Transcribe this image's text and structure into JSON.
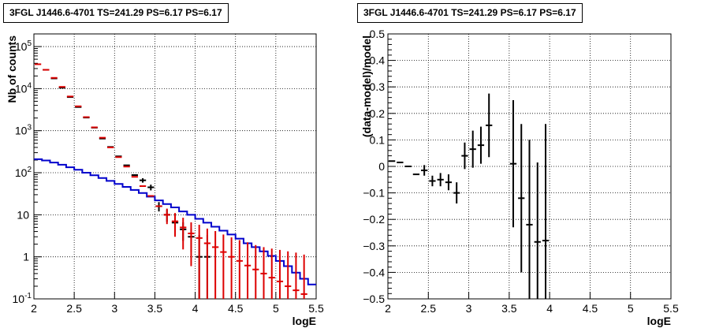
{
  "panels": [
    {
      "title": "3FGL J1446.6-4701 TS=241.29 PS=6.17 PS=6.17"
    },
    {
      "title": "3FGL J1446.6-4701 TS=241.29 PS=6.17 PS=6.17"
    }
  ],
  "chart_data": [
    {
      "type": "line",
      "title": "3FGL J1446.6-4701 TS=241.29 PS=6.17 PS=6.17",
      "xlabel": "logE",
      "ylabel": "Nb of counts",
      "xlim": [
        2,
        5.5
      ],
      "ylim": [
        0.1,
        200000
      ],
      "yscale": "log",
      "grid": true,
      "xticks": [
        "2",
        "2.5",
        "3",
        "3.5",
        "4",
        "4.5",
        "5",
        "5.5"
      ],
      "yticks": [
        "10^-1",
        "1",
        "10",
        "10^2",
        "10^3",
        "10^4",
        "10^5"
      ],
      "bin_edges": [
        2.0,
        2.1,
        2.2,
        2.3,
        2.4,
        2.5,
        2.6,
        2.7,
        2.8,
        2.9,
        3.0,
        3.1,
        3.2,
        3.3,
        3.4,
        3.5,
        3.6,
        3.7,
        3.8,
        3.9,
        4.0,
        4.1,
        4.2,
        4.3,
        4.4,
        4.5,
        4.6,
        4.7,
        4.8,
        4.9,
        5.0,
        5.1,
        5.2,
        5.3,
        5.4,
        5.5
      ],
      "series": [
        {
          "color": "#0000cc",
          "style": "histogram",
          "values": [
            210,
            195,
            175,
            155,
            135,
            118,
            100,
            87,
            75,
            64,
            54,
            46,
            39,
            33,
            27,
            22,
            18,
            15,
            12,
            10,
            8,
            6.5,
            5.2,
            4.2,
            3.4,
            2.7,
            2.1,
            1.7,
            1.35,
            1.05,
            0.8,
            0.6,
            0.42,
            0.3,
            0.22
          ]
        },
        {
          "color": "#dd0000",
          "style": "markers",
          "x": [
            2.05,
            2.15,
            2.25,
            2.35,
            2.45,
            2.55,
            2.65,
            2.75,
            2.85,
            2.95,
            3.05,
            3.15,
            3.25,
            3.35,
            3.45,
            3.55,
            3.65,
            3.75,
            3.85,
            3.95,
            4.05,
            4.15,
            4.25,
            4.35,
            4.45,
            4.55,
            4.65,
            4.75,
            4.85,
            4.95,
            5.05,
            5.15,
            5.25,
            5.35
          ],
          "y": [
            38000,
            28000,
            18000,
            11000,
            6500,
            3800,
            2100,
            1200,
            680,
            400,
            235,
            140,
            80,
            48,
            28,
            16,
            10,
            7.0,
            5.0,
            3.6,
            2.8,
            2.1,
            1.7,
            1.3,
            1.0,
            0.8,
            0.62,
            0.5,
            0.4,
            0.32,
            0.26,
            0.2,
            0.16,
            0.13
          ],
          "yerr_lo": [
            0,
            0,
            0,
            0,
            0,
            0,
            0,
            0,
            0,
            0,
            0,
            0,
            0,
            0,
            0,
            0,
            4,
            4,
            3.5,
            3,
            2.7,
            2.0,
            1.65,
            1.25,
            0.97,
            0.78,
            0.6,
            0.49,
            0.39,
            0.31,
            0.255,
            0.196,
            0.157,
            0.128
          ],
          "yerr_hi": [
            0,
            0,
            0,
            0,
            0,
            0,
            0,
            0,
            0,
            0,
            0,
            0,
            0,
            0,
            0,
            0,
            4,
            4,
            3.5,
            3,
            3,
            2.6,
            2.4,
            2.1,
            1.9,
            1.7,
            1.6,
            1.4,
            1.3,
            1.25,
            1.2,
            1.15,
            1.1,
            1.0
          ]
        },
        {
          "color": "#000000",
          "style": "markers",
          "x": [
            2.15,
            2.25,
            2.35,
            2.45,
            2.55,
            2.65,
            2.75,
            2.85,
            2.95,
            3.05,
            3.15,
            3.25,
            3.35,
            3.45,
            3.55,
            3.65,
            3.75,
            3.85,
            3.95,
            4.05,
            4.15
          ],
          "y": [
            28000,
            17500,
            10500,
            6300,
            3650,
            2050,
            1180,
            650,
            410,
            245,
            150,
            88,
            66,
            45,
            16,
            10,
            6.5,
            4.5,
            3.0,
            1.0,
            1.0
          ],
          "yerr_lo": [
            0,
            0,
            0,
            0,
            0,
            0,
            0,
            0,
            0,
            0,
            0,
            0,
            8,
            7,
            4,
            3.2,
            2.5,
            2.1,
            1.7,
            0.9,
            0.9
          ],
          "yerr_hi": [
            0,
            0,
            0,
            0,
            0,
            0,
            0,
            0,
            0,
            0,
            0,
            0,
            8,
            7,
            4,
            3.2,
            2.5,
            2.1,
            1.7,
            2.3,
            2.3
          ]
        }
      ]
    },
    {
      "type": "scatter",
      "title": "3FGL J1446.6-4701 TS=241.29 PS=6.17 PS=6.17",
      "xlabel": "logE",
      "ylabel": "(data-model)/model",
      "xlim": [
        2,
        5.5
      ],
      "ylim": [
        -0.5,
        0.5
      ],
      "grid": true,
      "xticks": [
        "2",
        "2.5",
        "3",
        "3.5",
        "4",
        "4.5",
        "5",
        "5.5"
      ],
      "yticks": [
        "−0.5",
        "−0.4",
        "−0.3",
        "−0.2",
        "−0.1",
        "0",
        "0.1",
        "0.2",
        "0.3",
        "0.4",
        "0.5"
      ],
      "series": [
        {
          "color": "#000000",
          "x": [
            2.05,
            2.15,
            2.25,
            2.35,
            2.45,
            2.55,
            2.65,
            2.75,
            2.85,
            2.95,
            3.05,
            3.15,
            3.25,
            3.55,
            3.65,
            3.75,
            3.85,
            3.95
          ],
          "y": [
            0.02,
            0.015,
            0.0,
            -0.03,
            -0.015,
            -0.055,
            -0.05,
            -0.06,
            -0.1,
            0.04,
            0.065,
            0.08,
            0.155,
            0.01,
            -0.12,
            -0.22,
            -0.285,
            -0.28
          ],
          "yerr": [
            0.0,
            0.0,
            0.0,
            0.0,
            0.02,
            0.02,
            0.025,
            0.03,
            0.04,
            0.05,
            0.07,
            0.07,
            0.12,
            0.24,
            0.28,
            0.32,
            0.3,
            0.44
          ]
        }
      ]
    }
  ]
}
